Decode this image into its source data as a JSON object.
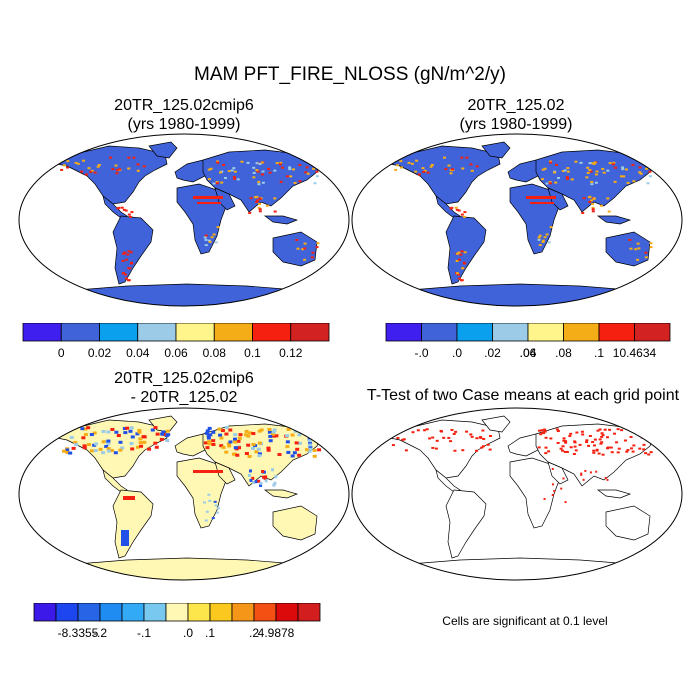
{
  "title": "MAM PFT_FIRE_NLOSS (gN/m^2/y)",
  "panels": [
    {
      "title_line1": "20TR_125.02cmip6",
      "title_line2": "(yrs 1980-1999)"
    },
    {
      "title_line1": "20TR_125.02",
      "title_line2": "(yrs 1980-1999)"
    },
    {
      "title_line1": "20TR_125.02cmip6",
      "title_line2": "- 20TR_125.02"
    },
    {
      "title_line1": "T-Test of two Case means at each grid point",
      "title_line2": ""
    }
  ],
  "colorbars": [
    {
      "colors": [
        "#3f1ef0",
        "#4163d9",
        "#0aa0ee",
        "#9bcbe6",
        "#fff58a",
        "#f5ad17",
        "#f5200f",
        "#d22222"
      ],
      "labels": [
        "0",
        "0.02",
        "0.04",
        "0.06",
        "0.08",
        "0.1",
        "0.12"
      ]
    },
    {
      "colors": [
        "#3f1ef0",
        "#4163d9",
        "#0aa0ee",
        "#9bcbe6",
        "#fff58a",
        "#f5ad17",
        "#f5200f",
        "#d22222"
      ],
      "labels": [
        "-.0",
        ".0",
        ".02",
        ".04",
        ".06",
        ".08",
        ".1",
        "10.4634"
      ]
    },
    {
      "colors": [
        "#3c19e8",
        "#1e46f0",
        "#2864e6",
        "#1e8cf0",
        "#32aaf5",
        "#78c8f0",
        "#fff8b4",
        "#fde64b",
        "#fac81e",
        "#f59619",
        "#f55014",
        "#dc0a0a",
        "#d21e1e"
      ],
      "labels": [
        "-8.3355",
        "-.2",
        "-.1",
        ".0",
        ".1",
        ".2",
        "4.9878"
      ]
    }
  ],
  "note": "Cells are significant at 0.1 level",
  "map_colors": {
    "ocean": "#ffffff",
    "land_case": "#4163d9",
    "land_diff": "#fff8b4",
    "land_ttest": "#ffffff",
    "hot": "#f5200f",
    "warm": "#f5ad17",
    "cool": "#9bcbe6",
    "blue": "#2050e8"
  }
}
